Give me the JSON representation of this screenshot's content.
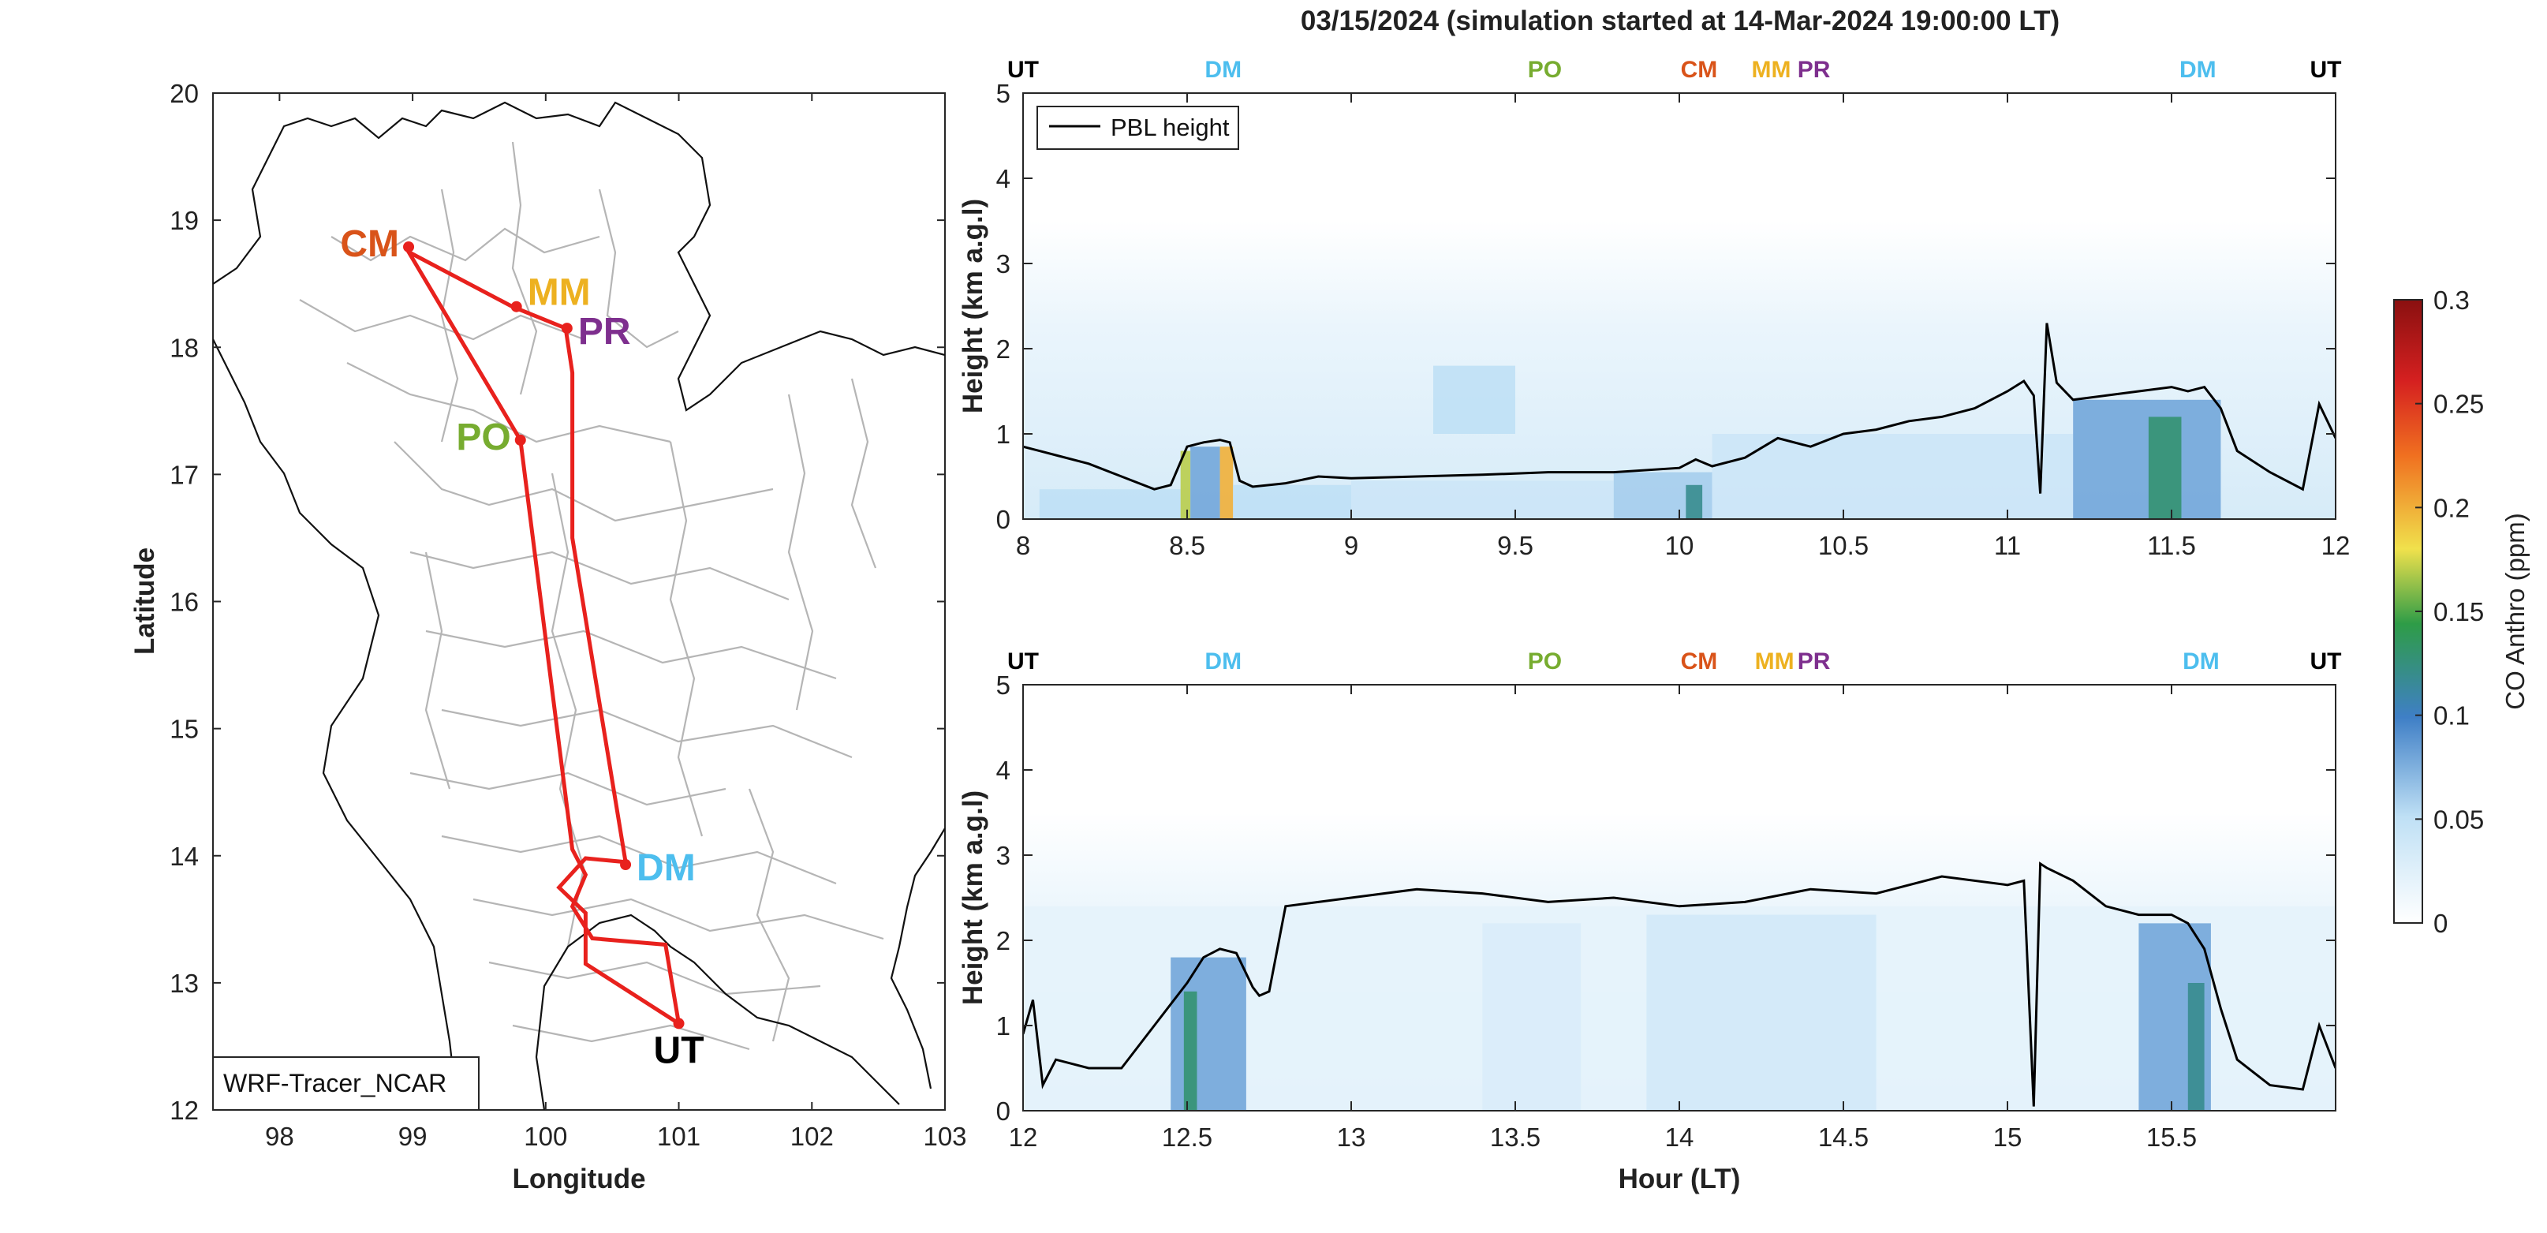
{
  "title": "03/15/2024 (simulation started at 14-Mar-2024 19:00:00 LT)",
  "chart_data": [
    {
      "type": "map",
      "xlabel": "Longitude",
      "ylabel": "Latitude",
      "xlim": [
        97.5,
        103
      ],
      "ylim": [
        12,
        20
      ],
      "x_ticks": [
        "98",
        "99",
        "100",
        "101",
        "102",
        "103"
      ],
      "y_ticks": [
        "12",
        "13",
        "14",
        "15",
        "16",
        "17",
        "18",
        "19",
        "20"
      ],
      "legend_box": "WRF-Tracer_NCAR",
      "route_color": "#e8211d",
      "route": [
        {
          "lon": 101.0,
          "lat": 12.68
        },
        {
          "lon": 100.3,
          "lat": 13.15
        },
        {
          "lon": 100.3,
          "lat": 13.55
        },
        {
          "lon": 100.1,
          "lat": 13.75
        },
        {
          "lon": 100.3,
          "lat": 13.98
        },
        {
          "lon": 100.6,
          "lat": 13.95
        },
        {
          "lon": 100.2,
          "lat": 16.5
        },
        {
          "lon": 100.2,
          "lat": 17.8
        },
        {
          "lon": 100.15,
          "lat": 18.15
        },
        {
          "lon": 99.75,
          "lat": 18.32
        },
        {
          "lon": 98.97,
          "lat": 18.75
        },
        {
          "lon": 99.81,
          "lat": 17.27
        },
        {
          "lon": 100.2,
          "lat": 14.05
        },
        {
          "lon": 100.3,
          "lat": 13.85
        },
        {
          "lon": 100.2,
          "lat": 13.6
        },
        {
          "lon": 100.35,
          "lat": 13.35
        },
        {
          "lon": 100.9,
          "lat": 13.3
        },
        {
          "lon": 101.0,
          "lat": 12.68
        }
      ],
      "stations": [
        {
          "name": "CM",
          "lon": 98.97,
          "lat": 18.79,
          "color": "#d95319",
          "label_pos": "left"
        },
        {
          "name": "MM",
          "lon": 99.78,
          "lat": 18.32,
          "color": "#edb120",
          "label_pos": "upper-right"
        },
        {
          "name": "PR",
          "lon": 100.16,
          "lat": 18.15,
          "color": "#7e2f8e",
          "label_pos": "right"
        },
        {
          "name": "PO",
          "lon": 99.81,
          "lat": 17.27,
          "color": "#77ac30",
          "label_pos": "left"
        },
        {
          "name": "DM",
          "lon": 100.6,
          "lat": 13.93,
          "color": "#4dbeee",
          "label_pos": "right"
        },
        {
          "name": "UT",
          "lon": 101.0,
          "lat": 12.68,
          "color": "#000000",
          "label_pos": "below"
        }
      ]
    },
    {
      "type": "heatmap",
      "ylabel": "Height (km a.g.l)",
      "xlim": [
        8,
        12
      ],
      "ylim": [
        0,
        5
      ],
      "x_ticks": [
        "8",
        "8.5",
        "9",
        "9.5",
        "10",
        "10.5",
        "11",
        "11.5",
        "12"
      ],
      "y_ticks": [
        "0",
        "1",
        "2",
        "3",
        "4",
        "5"
      ],
      "legend": "PBL height",
      "top_markers": [
        {
          "label": "UT",
          "x": 8.0,
          "color": "#000000"
        },
        {
          "label": "DM",
          "x": 8.61,
          "color": "#4dbeee"
        },
        {
          "label": "PO",
          "x": 9.59,
          "color": "#77ac30"
        },
        {
          "label": "CM",
          "x": 10.06,
          "color": "#d95319"
        },
        {
          "label": "MM",
          "x": 10.28,
          "color": "#edb120"
        },
        {
          "label": "PR",
          "x": 10.41,
          "color": "#7e2f8e"
        },
        {
          "label": "DM",
          "x": 11.58,
          "color": "#4dbeee"
        },
        {
          "label": "UT",
          "x": 11.97,
          "color": "#000000"
        }
      ],
      "pbl_height": {
        "x": [
          8.0,
          8.05,
          8.1,
          8.2,
          8.3,
          8.4,
          8.45,
          8.5,
          8.55,
          8.6,
          8.63,
          8.66,
          8.7,
          8.8,
          8.9,
          9.0,
          9.2,
          9.4,
          9.6,
          9.8,
          10.0,
          10.05,
          10.1,
          10.2,
          10.3,
          10.4,
          10.5,
          10.6,
          10.7,
          10.8,
          10.9,
          11.0,
          11.05,
          11.08,
          11.1,
          11.12,
          11.15,
          11.2,
          11.3,
          11.4,
          11.5,
          11.55,
          11.6,
          11.65,
          11.7,
          11.8,
          11.9,
          11.95,
          12.0
        ],
        "y": [
          0.85,
          0.8,
          0.75,
          0.65,
          0.5,
          0.35,
          0.4,
          0.85,
          0.9,
          0.93,
          0.9,
          0.45,
          0.38,
          0.42,
          0.5,
          0.48,
          0.5,
          0.52,
          0.55,
          0.55,
          0.6,
          0.7,
          0.62,
          0.72,
          0.95,
          0.85,
          1.0,
          1.05,
          1.15,
          1.2,
          1.3,
          1.5,
          1.62,
          1.45,
          0.3,
          2.3,
          1.6,
          1.4,
          1.45,
          1.5,
          1.55,
          1.5,
          1.55,
          1.3,
          0.8,
          0.55,
          0.35,
          1.35,
          0.95
        ]
      },
      "cells": [
        {
          "x0": 8.05,
          "x1": 8.48,
          "y0": 0.0,
          "y1": 0.35,
          "value": 0.05
        },
        {
          "x0": 8.48,
          "x1": 8.51,
          "y0": 0.0,
          "y1": 0.8,
          "value": 0.17
        },
        {
          "x0": 8.51,
          "x1": 8.6,
          "y0": 0.0,
          "y1": 0.85,
          "value": 0.08
        },
        {
          "x0": 8.6,
          "x1": 8.64,
          "y0": 0.0,
          "y1": 0.85,
          "value": 0.2
        },
        {
          "x0": 8.64,
          "x1": 9.0,
          "y0": 0.0,
          "y1": 0.4,
          "value": 0.05
        },
        {
          "x0": 9.0,
          "x1": 9.8,
          "y0": 0.0,
          "y1": 0.45,
          "value": 0.04
        },
        {
          "x0": 9.25,
          "x1": 9.5,
          "y0": 1.0,
          "y1": 1.8,
          "value": 0.05
        },
        {
          "x0": 9.8,
          "x1": 10.1,
          "y0": 0.0,
          "y1": 0.55,
          "value": 0.06
        },
        {
          "x0": 10.02,
          "x1": 10.07,
          "y0": 0.0,
          "y1": 0.4,
          "value": 0.12
        },
        {
          "x0": 10.1,
          "x1": 11.2,
          "y0": 0.0,
          "y1": 1.0,
          "value": 0.04
        },
        {
          "x0": 11.2,
          "x1": 11.65,
          "y0": 0.0,
          "y1": 1.4,
          "value": 0.08
        },
        {
          "x0": 11.43,
          "x1": 11.53,
          "y0": 0.0,
          "y1": 1.2,
          "value": 0.13
        }
      ]
    },
    {
      "type": "heatmap",
      "xlabel": "Hour (LT)",
      "ylabel": "Height (km a.g.l)",
      "xlim": [
        12,
        16
      ],
      "ylim": [
        0,
        5
      ],
      "x_ticks": [
        "12",
        "12.5",
        "13",
        "13.5",
        "14",
        "14.5",
        "15",
        "15.5"
      ],
      "y_ticks": [
        "0",
        "1",
        "2",
        "3",
        "4",
        "5"
      ],
      "top_markers": [
        {
          "label": "UT",
          "x": 12.0,
          "color": "#000000"
        },
        {
          "label": "DM",
          "x": 12.61,
          "color": "#4dbeee"
        },
        {
          "label": "PO",
          "x": 13.59,
          "color": "#77ac30"
        },
        {
          "label": "CM",
          "x": 14.06,
          "color": "#d95319"
        },
        {
          "label": "MM",
          "x": 14.29,
          "color": "#edb120"
        },
        {
          "label": "PR",
          "x": 14.41,
          "color": "#7e2f8e"
        },
        {
          "label": "DM",
          "x": 15.59,
          "color": "#4dbeee"
        },
        {
          "label": "UT",
          "x": 15.97,
          "color": "#000000"
        }
      ],
      "pbl_height": {
        "x": [
          12.0,
          12.03,
          12.06,
          12.1,
          12.2,
          12.3,
          12.4,
          12.5,
          12.55,
          12.6,
          12.65,
          12.7,
          12.72,
          12.75,
          12.8,
          12.9,
          13.0,
          13.2,
          13.4,
          13.6,
          13.8,
          14.0,
          14.2,
          14.4,
          14.6,
          14.8,
          15.0,
          15.05,
          15.08,
          15.1,
          15.12,
          15.2,
          15.3,
          15.4,
          15.5,
          15.55,
          15.6,
          15.65,
          15.7,
          15.8,
          15.9,
          15.95,
          16.0
        ],
        "y": [
          0.9,
          1.3,
          0.3,
          0.6,
          0.5,
          0.5,
          1.0,
          1.5,
          1.8,
          1.9,
          1.85,
          1.45,
          1.35,
          1.4,
          2.4,
          2.45,
          2.5,
          2.6,
          2.55,
          2.45,
          2.5,
          2.4,
          2.45,
          2.6,
          2.55,
          2.75,
          2.65,
          2.7,
          0.05,
          2.9,
          2.85,
          2.7,
          2.4,
          2.3,
          2.3,
          2.2,
          1.9,
          1.2,
          0.6,
          0.3,
          0.25,
          1.0,
          0.5
        ]
      },
      "cells": [
        {
          "x0": 12.0,
          "x1": 16.0,
          "y0": 0.0,
          "y1": 2.4,
          "value": 0.02
        },
        {
          "x0": 12.45,
          "x1": 12.68,
          "y0": 0.0,
          "y1": 1.8,
          "value": 0.08
        },
        {
          "x0": 12.49,
          "x1": 12.53,
          "y0": 0.0,
          "y1": 1.4,
          "value": 0.13
        },
        {
          "x0": 13.4,
          "x1": 13.7,
          "y0": 0.0,
          "y1": 2.2,
          "value": 0.03
        },
        {
          "x0": 13.9,
          "x1": 14.6,
          "y0": 0.0,
          "y1": 2.3,
          "value": 0.035
        },
        {
          "x0": 15.4,
          "x1": 15.62,
          "y0": 0.0,
          "y1": 2.2,
          "value": 0.08
        },
        {
          "x0": 15.55,
          "x1": 15.6,
          "y0": 0.0,
          "y1": 1.5,
          "value": 0.12
        }
      ]
    },
    {
      "type": "colorbar",
      "label": "CO Anthro (ppm)",
      "range": [
        0,
        0.3
      ],
      "ticks": [
        "0",
        "0.05",
        "0.1",
        "0.15",
        "0.2",
        "0.25",
        "0.3"
      ]
    }
  ]
}
